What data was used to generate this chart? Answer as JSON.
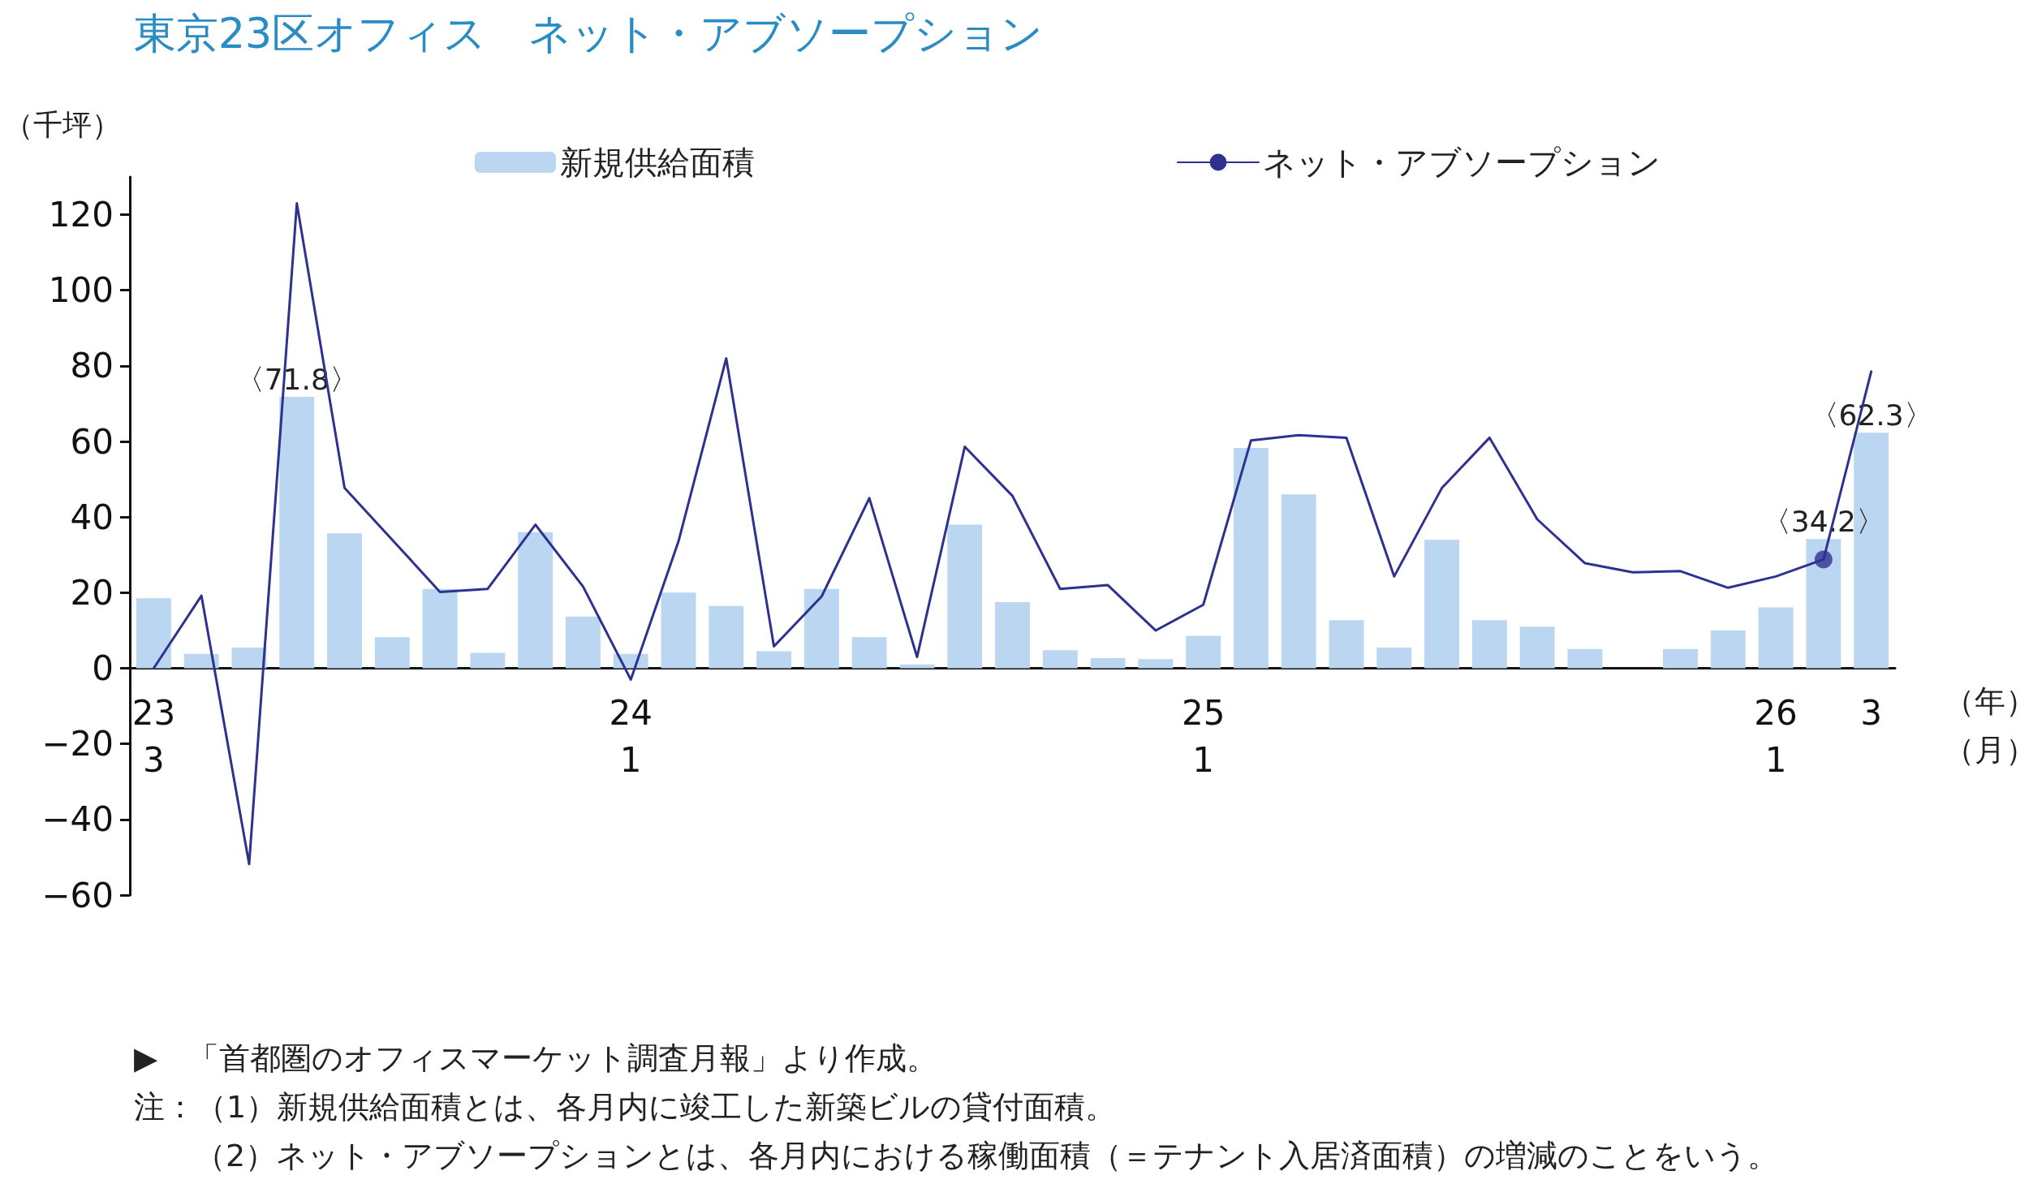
{
  "chart_data": {
    "type": "bar",
    "title": "東京23区オフィス　ネット・アブソープション",
    "ylabel": "（千坪）",
    "categories": [
      "23\n3",
      null,
      null,
      null,
      null,
      null,
      null,
      null,
      null,
      null,
      "24\n1",
      null,
      null,
      null,
      null,
      null,
      null,
      null,
      null,
      null,
      null,
      null,
      "25\n1",
      null,
      null,
      null,
      null,
      null,
      null,
      null,
      null,
      null,
      null,
      null,
      "26\n1",
      null,
      "3"
    ],
    "series": [
      {
        "name": "新規供給面積",
        "color": "#bad6f0",
        "values": [
          18.5,
          3.8,
          5.5,
          71.8,
          35.7,
          8.2,
          21,
          4.1,
          36,
          13.7,
          3.8,
          20,
          16.5,
          4.5,
          21,
          8.2,
          1,
          38,
          17.5,
          4.8,
          2.7,
          2.4,
          8.6,
          58.3,
          46,
          12.7,
          5.5,
          34,
          12.7,
          11,
          5.1,
          null,
          5.1,
          10,
          16.1,
          34.2,
          62.3
        ],
        "value_labels": [
          null,
          null,
          null,
          "〈71.8〉",
          null,
          null,
          null,
          null,
          null,
          null,
          null,
          null,
          null,
          null,
          null,
          null,
          null,
          null,
          null,
          null,
          null,
          null,
          null,
          null,
          null,
          null,
          null,
          null,
          null,
          null,
          null,
          null,
          null,
          null,
          null,
          "〈34.2〉",
          "〈62.3〉"
        ]
      },
      {
        "name": "ネット・アブソープション",
        "type": "line",
        "color": "#2e3190",
        "marker": "none",
        "values": [
          0,
          19.2,
          -51.8,
          123,
          47.7,
          34,
          20.2,
          21,
          38,
          21.6,
          -3,
          33.6,
          82,
          5.8,
          19,
          45,
          3,
          58.6,
          45.6,
          21,
          22,
          10,
          16.8,
          60.3,
          61.7,
          61,
          24.3,
          47.7,
          61,
          39.4,
          27.8,
          25.4,
          25.7,
          21.3,
          24.3,
          28.8,
          78.5
        ]
      },
      {
        "type": "scatter",
        "color": "#2e3190",
        "marker": "circle",
        "values": [
          null,
          null,
          null,
          null,
          null,
          null,
          null,
          null,
          null,
          null,
          null,
          null,
          null,
          null,
          null,
          null,
          null,
          null,
          null,
          null,
          null,
          null,
          null,
          null,
          null,
          null,
          null,
          null,
          null,
          null,
          null,
          null,
          null,
          null,
          null,
          28.8,
          null
        ]
      }
    ],
    "ylim": [
      -60,
      130
    ],
    "yticks": [
      -60,
      -40,
      -20,
      0,
      20,
      40,
      60,
      80,
      100,
      120
    ],
    "grid": false,
    "legend": "top",
    "annotations": [
      "（年）",
      "（月）",
      "▶　「首都圏のオフィスマーケット調査月報」より作成。",
      "注：（1）新規供給面積とは、各月内に竣工した新築ビルの貸付面積。",
      "（2）ネット・アブソープションとは、各月内における稼働面積（＝テナント入居済面積）の増減のことをいう。"
    ]
  }
}
